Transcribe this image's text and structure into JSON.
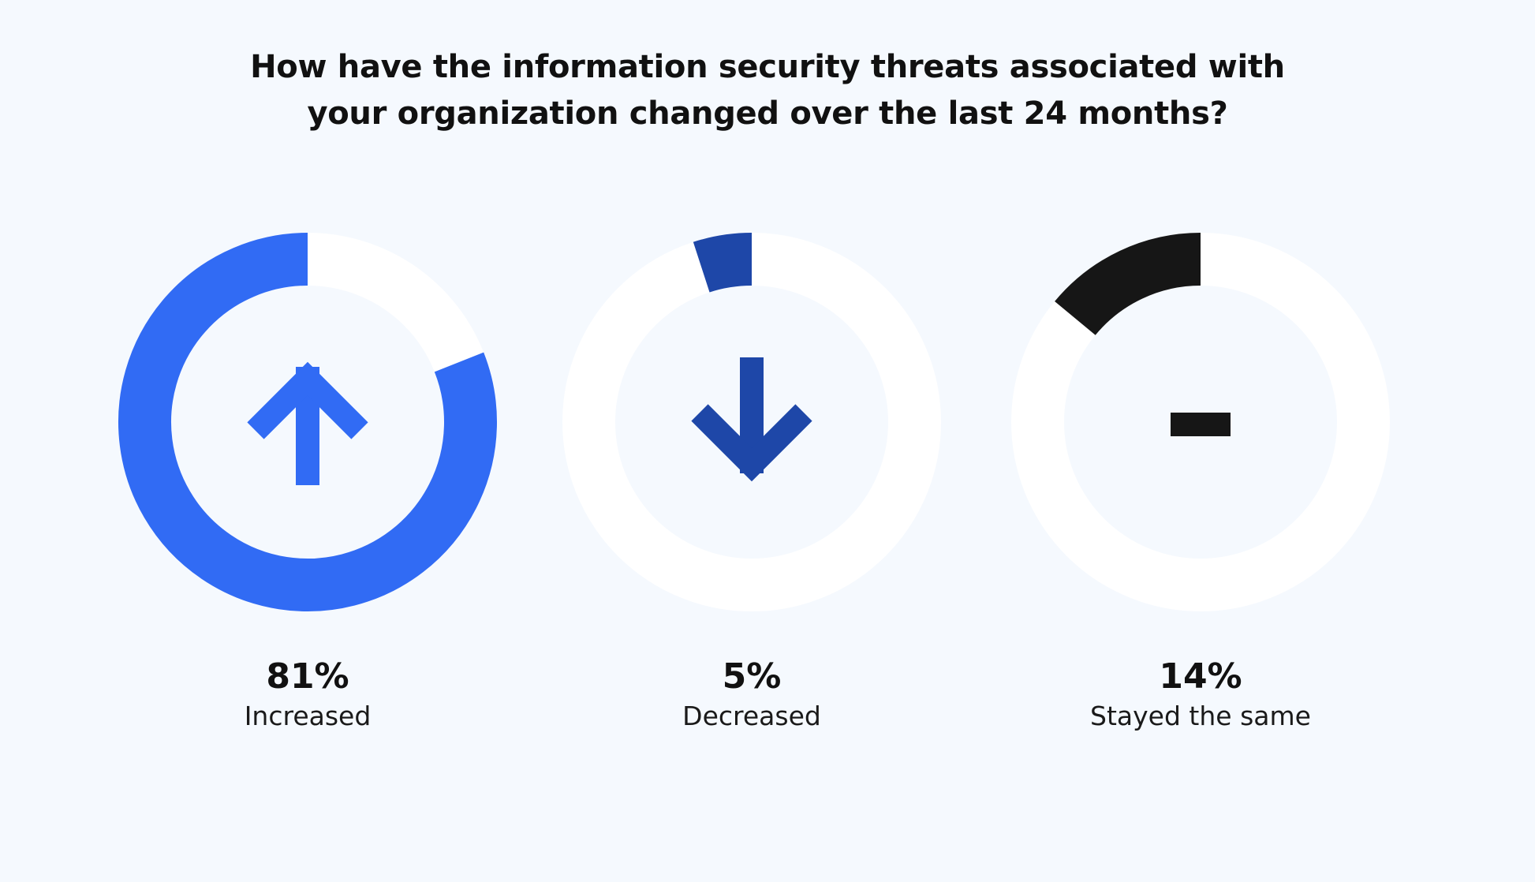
{
  "title": {
    "line1": "How have the information security threats associated with",
    "line2": "your organization changed over the last 24 months?"
  },
  "colors": {
    "background": "#f5f9fe",
    "track": "#ffffff",
    "increased": "#316bf4",
    "decreased": "#1e47a8",
    "stayed_same": "#161616"
  },
  "chart_data": {
    "type": "pie",
    "title": "How have the information security threats associated with your organization changed over the last 24 months?",
    "unit": "%",
    "items": [
      {
        "key": "increased",
        "value": 81,
        "value_label": "81%",
        "label": "Increased",
        "icon": "arrow-up-icon",
        "color": "#316bf4"
      },
      {
        "key": "decreased",
        "value": 5,
        "value_label": "5%",
        "label": "Decreased",
        "icon": "arrow-down-icon",
        "color": "#1e47a8"
      },
      {
        "key": "stayed_same",
        "value": 14,
        "value_label": "14%",
        "label": "Stayed the same",
        "icon": "dash-icon",
        "color": "#161616"
      }
    ]
  }
}
